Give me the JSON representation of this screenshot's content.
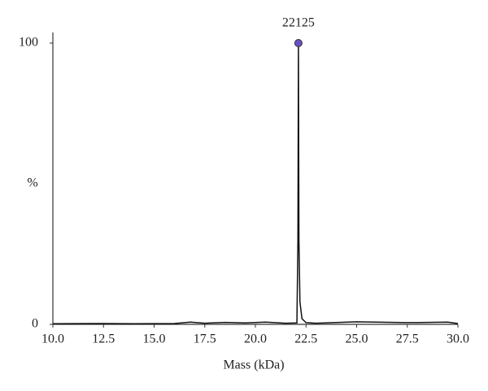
{
  "chart_data": {
    "type": "line",
    "x_label": "Mass (kDa)",
    "y_label": "%",
    "xlim": [
      10,
      30
    ],
    "ylim": [
      0,
      100
    ],
    "xticks": [
      {
        "value": 10,
        "label": "10.0"
      },
      12.5,
      {
        "value": 15,
        "label": "15.0"
      },
      17.5,
      {
        "value": 20,
        "label": "20.0"
      },
      22.5,
      {
        "value": 25,
        "label": "25.0"
      },
      27.5,
      {
        "value": 30,
        "label": "30.0"
      }
    ],
    "yticks": [
      0,
      100
    ],
    "series": [
      {
        "color": "#111111",
        "x": [
          10.0,
          12.0,
          14.0,
          16.0,
          16.8,
          17.5,
          18.5,
          19.5,
          20.5,
          21.5,
          22.05,
          22.1,
          22.125,
          22.15,
          22.2,
          22.3,
          22.5,
          23.0,
          25.0,
          27.5,
          29.5,
          30.0
        ],
        "values": [
          0.2,
          0.3,
          0.2,
          0.3,
          0.8,
          0.4,
          0.7,
          0.5,
          0.8,
          0.4,
          0.5,
          30,
          100,
          30,
          8,
          2,
          0.6,
          0.4,
          0.9,
          0.6,
          0.8,
          0.3
        ]
      }
    ],
    "annotation": {
      "x": 22.125,
      "y": 100,
      "text": "22125",
      "color": "#6a4fc4"
    }
  }
}
